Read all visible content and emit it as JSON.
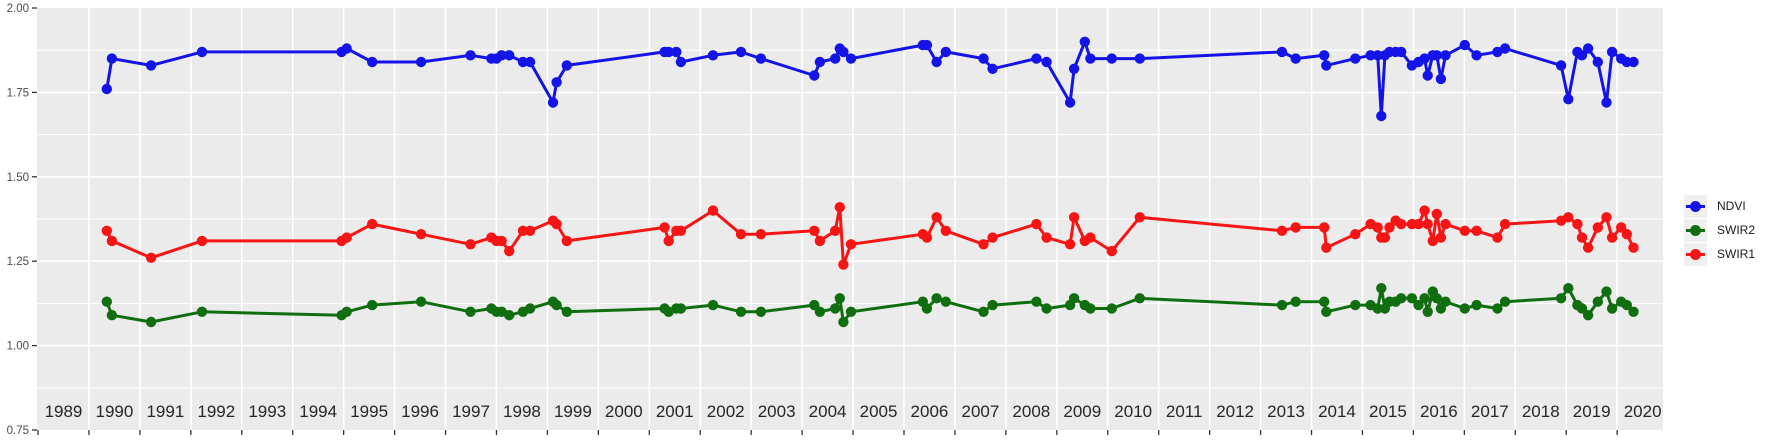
{
  "chart_data": {
    "type": "line",
    "title": "",
    "xlabel": "",
    "ylabel": "",
    "xlim": [
      1988.48,
      2020.4
    ],
    "ylim": [
      0.75,
      2.0
    ],
    "y_ticks": [
      0.75,
      1.0,
      1.25,
      1.5,
      1.75,
      2.0
    ],
    "y_tick_labels": [
      "0.75",
      "1.00",
      "1.25",
      "1.50",
      "1.75",
      "2.00"
    ],
    "x_year_labels": [
      "1989",
      "1990",
      "1991",
      "1992",
      "1993",
      "1994",
      "1995",
      "1996",
      "1997",
      "1998",
      "1999",
      "2000",
      "2001",
      "2002",
      "2003",
      "2004",
      "2005",
      "2006",
      "2007",
      "2008",
      "2009",
      "2010",
      "2011",
      "2012",
      "2013",
      "2014",
      "2015",
      "2016",
      "2017",
      "2018",
      "2019",
      "2020"
    ],
    "grid": {
      "horizontal_major_step": 0.25,
      "horizontal_minor_step": 0.125,
      "vertical_lines_at_half_years": true,
      "grid_on": true
    },
    "legend": {
      "position": "right",
      "entries": [
        {
          "name": "NDVI",
          "color": "#1414e8"
        },
        {
          "name": "SWIR2",
          "color": "#106e10"
        },
        {
          "name": "SWIR1",
          "color": "#f71414"
        }
      ]
    },
    "x": [
      1989.85,
      1989.95,
      1990.72,
      1991.72,
      1994.46,
      1994.56,
      1995.06,
      1996.02,
      1996.99,
      1997.4,
      1997.5,
      1997.6,
      1997.75,
      1998.02,
      1998.16,
      1998.61,
      1998.68,
      1998.88,
      2000.8,
      2000.88,
      2001.03,
      2001.12,
      2001.75,
      2002.3,
      2002.69,
      2003.74,
      2003.85,
      2004.15,
      2004.24,
      2004.31,
      2004.46,
      2005.87,
      2005.95,
      2006.14,
      2006.32,
      2007.06,
      2007.24,
      2008.1,
      2008.3,
      2008.76,
      2008.84,
      2009.05,
      2009.16,
      2009.58,
      2010.13,
      2012.92,
      2013.19,
      2013.75,
      2013.79,
      2014.36,
      2014.66,
      2014.8,
      2014.87,
      2014.94,
      2015.03,
      2015.15,
      2015.26,
      2015.47,
      2015.6,
      2015.72,
      2015.78,
      2015.88,
      2015.96,
      2016.04,
      2016.13,
      2016.51,
      2016.74,
      2017.15,
      2017.3,
      2018.4,
      2018.54,
      2018.72,
      2018.81,
      2018.93,
      2019.12,
      2019.29,
      2019.4,
      2019.58,
      2019.69,
      2019.82
    ],
    "series": [
      {
        "name": "NDVI",
        "color": "#1414e8",
        "values": [
          1.76,
          1.85,
          1.83,
          1.87,
          1.87,
          1.88,
          1.84,
          1.84,
          1.86,
          1.85,
          1.85,
          1.86,
          1.86,
          1.84,
          1.84,
          1.72,
          1.78,
          1.83,
          1.87,
          1.87,
          1.87,
          1.84,
          1.86,
          1.87,
          1.85,
          1.8,
          1.84,
          1.85,
          1.88,
          1.87,
          1.85,
          1.89,
          1.89,
          1.84,
          1.87,
          1.85,
          1.82,
          1.85,
          1.84,
          1.72,
          1.82,
          1.9,
          1.85,
          1.85,
          1.85,
          1.87,
          1.85,
          1.86,
          1.83,
          1.85,
          1.86,
          1.86,
          1.68,
          1.86,
          1.87,
          1.87,
          1.87,
          1.83,
          1.84,
          1.85,
          1.8,
          1.86,
          1.86,
          1.79,
          1.86,
          1.89,
          1.86,
          1.87,
          1.88,
          1.83,
          1.73,
          1.87,
          1.86,
          1.88,
          1.84,
          1.72,
          1.87,
          1.85,
          1.84,
          1.84
        ]
      },
      {
        "name": "SWIR2",
        "color": "#106e10",
        "values": [
          1.13,
          1.09,
          1.07,
          1.1,
          1.09,
          1.1,
          1.12,
          1.13,
          1.1,
          1.11,
          1.1,
          1.1,
          1.09,
          1.1,
          1.11,
          1.13,
          1.12,
          1.1,
          1.11,
          1.1,
          1.11,
          1.11,
          1.12,
          1.1,
          1.1,
          1.12,
          1.1,
          1.11,
          1.14,
          1.07,
          1.1,
          1.13,
          1.11,
          1.14,
          1.13,
          1.1,
          1.12,
          1.13,
          1.11,
          1.12,
          1.14,
          1.12,
          1.11,
          1.11,
          1.14,
          1.12,
          1.13,
          1.13,
          1.1,
          1.12,
          1.12,
          1.11,
          1.17,
          1.11,
          1.13,
          1.13,
          1.14,
          1.14,
          1.12,
          1.14,
          1.1,
          1.16,
          1.14,
          1.11,
          1.13,
          1.11,
          1.12,
          1.11,
          1.13,
          1.14,
          1.17,
          1.12,
          1.11,
          1.09,
          1.13,
          1.16,
          1.11,
          1.13,
          1.12,
          1.1
        ]
      },
      {
        "name": "SWIR1",
        "color": "#f71414",
        "values": [
          1.34,
          1.31,
          1.26,
          1.31,
          1.31,
          1.32,
          1.36,
          1.33,
          1.3,
          1.32,
          1.31,
          1.31,
          1.28,
          1.34,
          1.34,
          1.37,
          1.36,
          1.31,
          1.35,
          1.31,
          1.34,
          1.34,
          1.4,
          1.33,
          1.33,
          1.34,
          1.31,
          1.34,
          1.41,
          1.24,
          1.3,
          1.33,
          1.32,
          1.38,
          1.34,
          1.3,
          1.32,
          1.36,
          1.32,
          1.3,
          1.38,
          1.31,
          1.32,
          1.28,
          1.38,
          1.34,
          1.35,
          1.35,
          1.29,
          1.33,
          1.36,
          1.35,
          1.32,
          1.32,
          1.35,
          1.37,
          1.36,
          1.36,
          1.36,
          1.4,
          1.36,
          1.31,
          1.39,
          1.32,
          1.36,
          1.34,
          1.34,
          1.32,
          1.36,
          1.37,
          1.38,
          1.36,
          1.32,
          1.29,
          1.35,
          1.38,
          1.32,
          1.35,
          1.33,
          1.29
        ]
      }
    ]
  },
  "styles": {
    "panel_bg": "#ebebeb",
    "grid_color": "#ffffff",
    "axis_text_color": "#4d4d4d",
    "year_label_color": "#262626",
    "tick_color": "#333333",
    "legend_key_bg": "#f0f0f0"
  }
}
